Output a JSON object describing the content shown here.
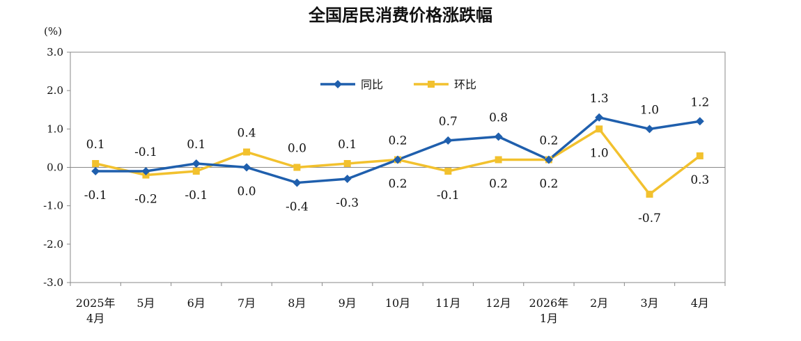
{
  "chart_data": {
    "type": "line",
    "title": "全国居民消费价格涨跌幅",
    "unit": "(%)",
    "categories": [
      [
        "2025年",
        "4月"
      ],
      [
        "5月"
      ],
      [
        "6月"
      ],
      [
        "7月"
      ],
      [
        "8月"
      ],
      [
        "9月"
      ],
      [
        "10月"
      ],
      [
        "11月"
      ],
      [
        "12月"
      ],
      [
        "2026年",
        "1月"
      ],
      [
        "2月"
      ],
      [
        "3月"
      ],
      [
        "4月"
      ]
    ],
    "ylim": [
      -3.0,
      3.0
    ],
    "yticks": [
      "3.0",
      "2.0",
      "1.0",
      "0.0",
      "-1.0",
      "-2.0",
      "-3.0"
    ],
    "grid": false,
    "legend_position": "top-center",
    "series": [
      {
        "name": "同比",
        "color": "#1f5fad",
        "marker": "diamond",
        "values": [
          -0.1,
          -0.1,
          0.1,
          0.0,
          -0.4,
          -0.3,
          0.2,
          0.7,
          0.8,
          0.2,
          1.3,
          1.0,
          1.2
        ],
        "labels": [
          "-0.1",
          "-0.1",
          "0.1",
          "0.0",
          "-0.4",
          "-0.3",
          "0.2",
          "0.7",
          "0.8",
          "0.2",
          "1.3",
          "1.0",
          "1.2"
        ]
      },
      {
        "name": "环比",
        "color": "#f2c12e",
        "marker": "square",
        "values": [
          0.1,
          -0.2,
          -0.1,
          0.4,
          0.0,
          0.1,
          0.2,
          -0.1,
          0.2,
          0.2,
          1.0,
          -0.7,
          0.3
        ],
        "labels": [
          "0.1",
          "-0.2",
          "-0.1",
          "0.4",
          "0.0",
          "0.1",
          "0.2",
          "-0.1",
          "0.2",
          "0.2",
          "1.0",
          "-0.7",
          "0.3"
        ]
      }
    ]
  }
}
